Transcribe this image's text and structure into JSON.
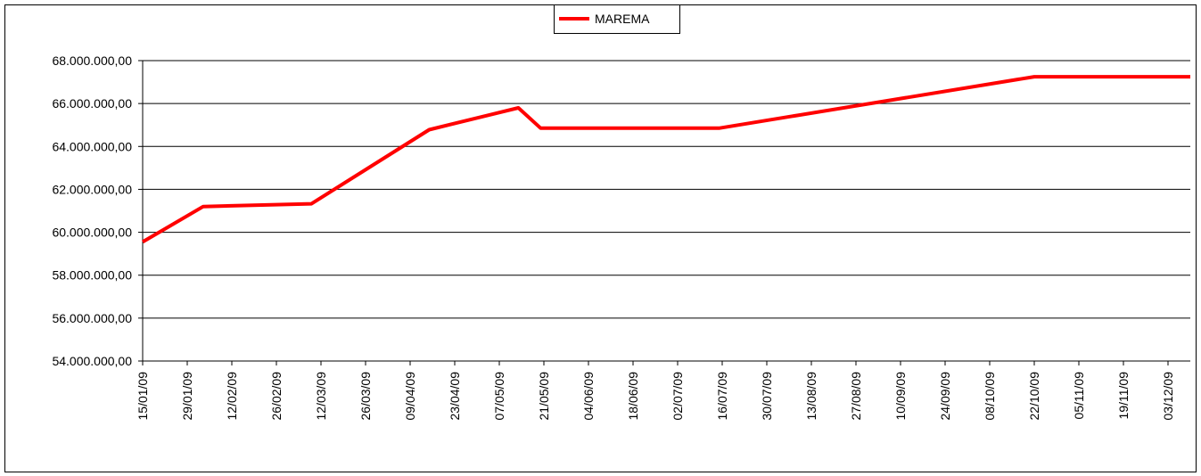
{
  "chart_data": {
    "type": "line",
    "x": [
      "15/01/09",
      "03/02/09",
      "09/03/09",
      "15/04/09",
      "13/05/09",
      "20/05/09",
      "15/07/09",
      "22/10/09",
      "10/12/09"
    ],
    "series": [
      {
        "name": "MAREMA",
        "color": "#ff0000",
        "values": [
          59550000,
          61200000,
          61330000,
          64780000,
          65800000,
          64850000,
          64850000,
          67250000,
          67250000
        ]
      }
    ],
    "xlim": [
      "15/01/09",
      "10/12/09"
    ],
    "xticks": [
      "15/01/09",
      "29/01/09",
      "12/02/09",
      "26/02/09",
      "12/03/09",
      "26/03/09",
      "09/04/09",
      "23/04/09",
      "07/05/09",
      "21/05/09",
      "04/06/09",
      "18/06/09",
      "02/07/09",
      "16/07/09",
      "30/07/09",
      "13/08/09",
      "27/08/09",
      "10/09/09",
      "24/09/09",
      "08/10/09",
      "22/10/09",
      "05/11/09",
      "19/11/09",
      "03/12/09"
    ],
    "ylim": [
      54000000,
      68000000
    ],
    "yticks": [
      {
        "value": 54000000,
        "label": "54.000.000,00"
      },
      {
        "value": 56000000,
        "label": "56.000.000,00"
      },
      {
        "value": 58000000,
        "label": "58.000.000,00"
      },
      {
        "value": 60000000,
        "label": "60.000.000,00"
      },
      {
        "value": 62000000,
        "label": "62.000.000,00"
      },
      {
        "value": 64000000,
        "label": "64.000.000,00"
      },
      {
        "value": 66000000,
        "label": "66.000.000,00"
      },
      {
        "value": 68000000,
        "label": "68.000.000,00"
      }
    ],
    "grid": true,
    "legend": "top"
  }
}
